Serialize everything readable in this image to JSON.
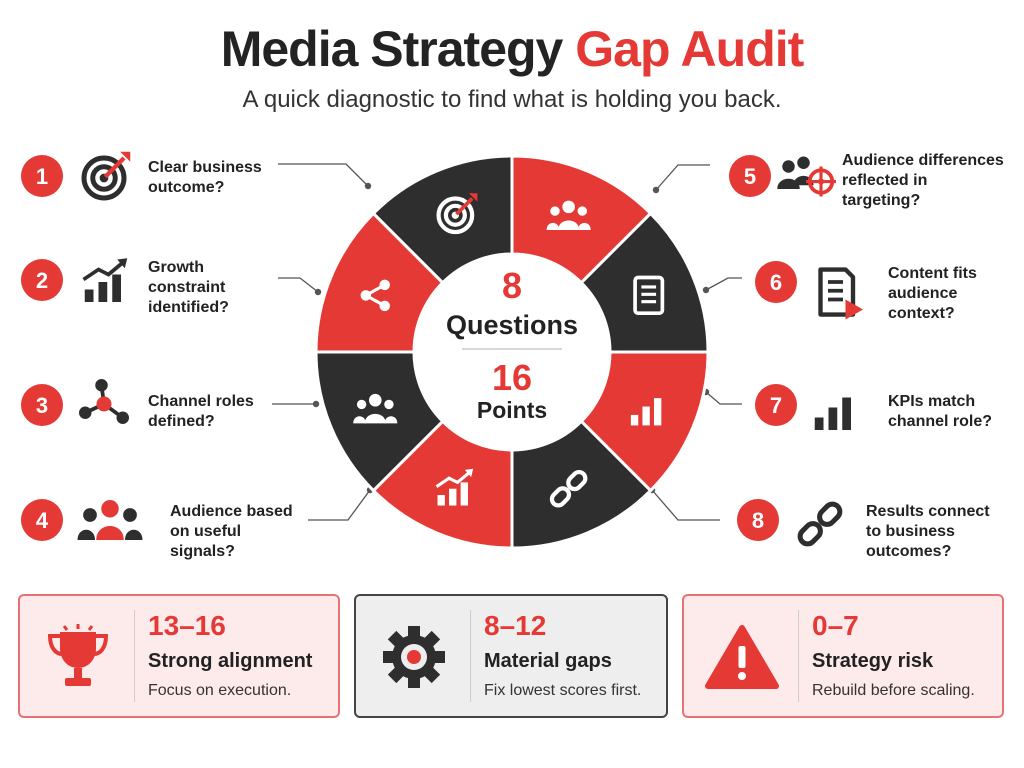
{
  "header": {
    "title_part1": "Media Strategy",
    "title_part2": "Gap Audit",
    "subtitle": "A quick diagnostic to find what is holding you back."
  },
  "center": {
    "questions_count": "8",
    "questions_label": "Questions",
    "points_count": "16",
    "points_label": "Points"
  },
  "questions": [
    {
      "number": "1",
      "lines": [
        "Clear business",
        "outcome?"
      ],
      "icon": "target-icon"
    },
    {
      "number": "2",
      "lines": [
        "Growth",
        "constraint",
        "identified?"
      ],
      "icon": "growth-chart-icon"
    },
    {
      "number": "3",
      "lines": [
        "Channel roles",
        "defined?"
      ],
      "icon": "network-icon"
    },
    {
      "number": "4",
      "lines": [
        "Audience based",
        "on useful",
        "signals?"
      ],
      "icon": "audience-icon"
    },
    {
      "number": "5",
      "lines": [
        "Audience differences",
        "reflected in",
        "targeting?"
      ],
      "icon": "audience-target-icon"
    },
    {
      "number": "6",
      "lines": [
        "Content fits",
        "audience",
        "context?"
      ],
      "icon": "content-video-icon"
    },
    {
      "number": "7",
      "lines": [
        "KPIs match",
        "channel role?"
      ],
      "icon": "bar-chart-icon"
    },
    {
      "number": "8",
      "lines": [
        "Results connect",
        "to business",
        "outcomes?"
      ],
      "icon": "link-icon"
    }
  ],
  "ring_segments": [
    {
      "icon": "target-icon",
      "color": "#e53935"
    },
    {
      "icon": "people-icon",
      "color": "#2e2e2e"
    },
    {
      "icon": "document-icon",
      "color": "#e53935"
    },
    {
      "icon": "bar-chart-icon",
      "color": "#2e2e2e"
    },
    {
      "icon": "link-icon",
      "color": "#e53935"
    },
    {
      "icon": "growth-chart-icon",
      "color": "#2e2e2e"
    },
    {
      "icon": "people-icon",
      "color": "#e53935"
    },
    {
      "icon": "share-icon",
      "color": "#2e2e2e"
    }
  ],
  "scores": [
    {
      "range": "13–16",
      "label": "Strong alignment",
      "description": "Focus on execution.",
      "icon": "trophy-icon"
    },
    {
      "range": "8–12",
      "label": "Material gaps",
      "description": "Fix lowest scores first.",
      "icon": "gear-icon"
    },
    {
      "range": "0–7",
      "label": "Strategy risk",
      "description": "Rebuild before scaling.",
      "icon": "warning-icon"
    }
  ],
  "colors": {
    "accent_red": "#e53935",
    "dark": "#2e2e2e",
    "card_red_bg": "#fdeaea",
    "card_gray_bg": "#eeeeee"
  }
}
